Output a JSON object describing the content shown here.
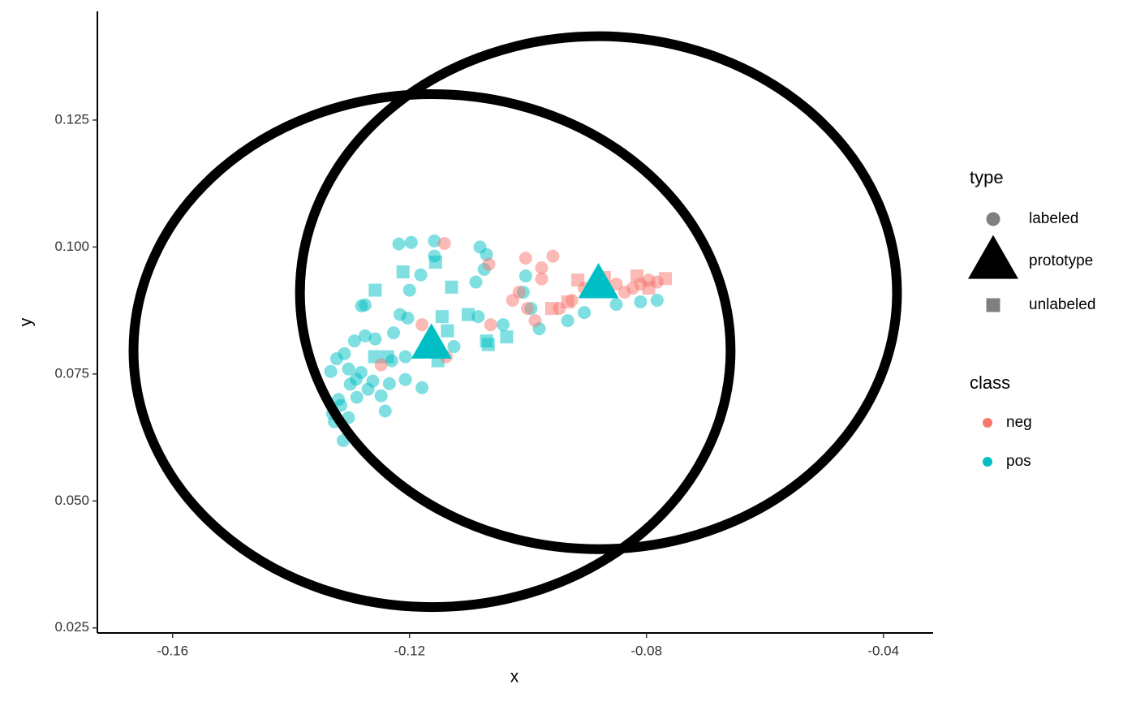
{
  "chart_data": {
    "type": "scatter",
    "x_label": "x",
    "y_label": "y",
    "xlim": [
      -0.1727,
      -0.0316
    ],
    "ylim": [
      0.024,
      0.1464
    ],
    "xticks": [
      -0.16,
      -0.12,
      -0.08,
      -0.04
    ],
    "yticks": [
      0.025,
      {
        "value": 0.05,
        "label": "0.050"
      },
      0.075,
      {
        "value": 0.1,
        "label": "0.100"
      },
      0.125
    ],
    "legends": [
      {
        "title": "type",
        "entries": [
          {
            "label": "labeled",
            "marker": "circle"
          },
          {
            "label": "prototype",
            "marker": "triangle"
          },
          {
            "label": "unlabeled",
            "marker": "square"
          }
        ]
      },
      {
        "title": "class",
        "entries": [
          {
            "label": "neg",
            "color": "#F8766D"
          },
          {
            "label": "pos",
            "color": "#00BFC4"
          }
        ]
      }
    ],
    "ellipses": [
      {
        "cx": -0.1162,
        "cy": 0.0796,
        "rx": 0.0504,
        "ry": 0.0505,
        "color": "#000000"
      },
      {
        "cx": -0.0881,
        "cy": 0.091,
        "rx": 0.0504,
        "ry": 0.0505,
        "color": "#000000"
      }
    ],
    "groups": [
      {
        "type": 0,
        "class": 1,
        "x": [
          -0.1218,
          -0.1197,
          -0.1158,
          -0.1081,
          -0.107,
          -0.1074,
          -0.1088,
          -0.1158,
          -0.1181,
          -0.12,
          -0.1216,
          -0.1275,
          -0.1281,
          -0.1203,
          -0.1227,
          -0.1258,
          -0.1275,
          -0.1293,
          -0.131,
          -0.1323,
          -0.1333,
          -0.1303,
          -0.1282,
          -0.1262,
          -0.1234,
          -0.1241,
          -0.1248,
          -0.1289,
          -0.1316,
          -0.133,
          -0.1312,
          -0.1327,
          -0.1303,
          -0.1179,
          -0.1207,
          -0.1125,
          -0.1084,
          -0.1042,
          -0.1008,
          -0.1004,
          -0.0995,
          -0.0981,
          -0.0933,
          -0.0905,
          -0.0851,
          -0.081,
          -0.0782,
          -0.1207,
          -0.123,
          -0.129,
          -0.127,
          -0.132,
          -0.13
        ],
        "y": [
          0.1006,
          0.1009,
          0.1012,
          0.1,
          0.0985,
          0.0956,
          0.0931,
          0.0982,
          0.0945,
          0.0915,
          0.0867,
          0.0886,
          0.0884,
          0.086,
          0.0831,
          0.0819,
          0.0825,
          0.0815,
          0.079,
          0.078,
          0.0755,
          0.076,
          0.0753,
          0.0736,
          0.0731,
          0.0677,
          0.0707,
          0.0704,
          0.0688,
          0.0672,
          0.0619,
          0.0656,
          0.0664,
          0.0723,
          0.0739,
          0.0804,
          0.0863,
          0.0847,
          0.0911,
          0.0943,
          0.0879,
          0.0839,
          0.0855,
          0.0871,
          0.0887,
          0.0892,
          0.0895,
          0.0784,
          0.0776,
          0.074,
          0.072,
          0.07,
          0.073
        ]
      },
      {
        "type": 2,
        "class": 1,
        "x": [
          -0.1211,
          -0.1156,
          -0.1129,
          -0.1258,
          -0.1145,
          -0.1101,
          -0.1136,
          -0.107,
          -0.1036,
          -0.1152,
          -0.1259,
          -0.1237,
          -0.1067
        ],
        "y": [
          0.0951,
          0.097,
          0.0921,
          0.0915,
          0.0863,
          0.0867,
          0.0835,
          0.0815,
          0.0823,
          0.0776,
          0.0784,
          0.0784,
          0.0808
        ]
      },
      {
        "type": 0,
        "class": 0,
        "x": [
          -0.1141,
          -0.1066,
          -0.1004,
          -0.0977,
          -0.0958,
          -0.0977,
          -0.1015,
          -0.1026,
          -0.1001,
          -0.0988,
          -0.0947,
          -0.0926,
          -0.0905,
          -0.0885,
          -0.0851,
          -0.0837,
          -0.0823,
          -0.081,
          -0.0796,
          -0.0782,
          -0.1179,
          -0.1138,
          -0.1248,
          -0.1063
        ],
        "y": [
          0.1007,
          0.0966,
          0.0978,
          0.0959,
          0.0982,
          0.0937,
          0.0911,
          0.0895,
          0.0879,
          0.0855,
          0.0879,
          0.0895,
          0.0919,
          0.0935,
          0.0927,
          0.0911,
          0.0919,
          0.0927,
          0.0935,
          0.0931,
          0.0847,
          0.0784,
          0.0768,
          0.0847
        ]
      },
      {
        "type": 2,
        "class": 0,
        "x": [
          -0.0916,
          -0.0871,
          -0.0816,
          -0.0768,
          -0.0796,
          -0.096,
          -0.0933
        ],
        "y": [
          0.0935,
          0.094,
          0.0943,
          0.0938,
          0.0919,
          0.0879,
          0.0892
        ]
      },
      {
        "type": 1,
        "class": 1,
        "x": [
          -0.1163,
          -0.0881
        ],
        "y": [
          0.0808,
          0.0927
        ]
      }
    ]
  }
}
